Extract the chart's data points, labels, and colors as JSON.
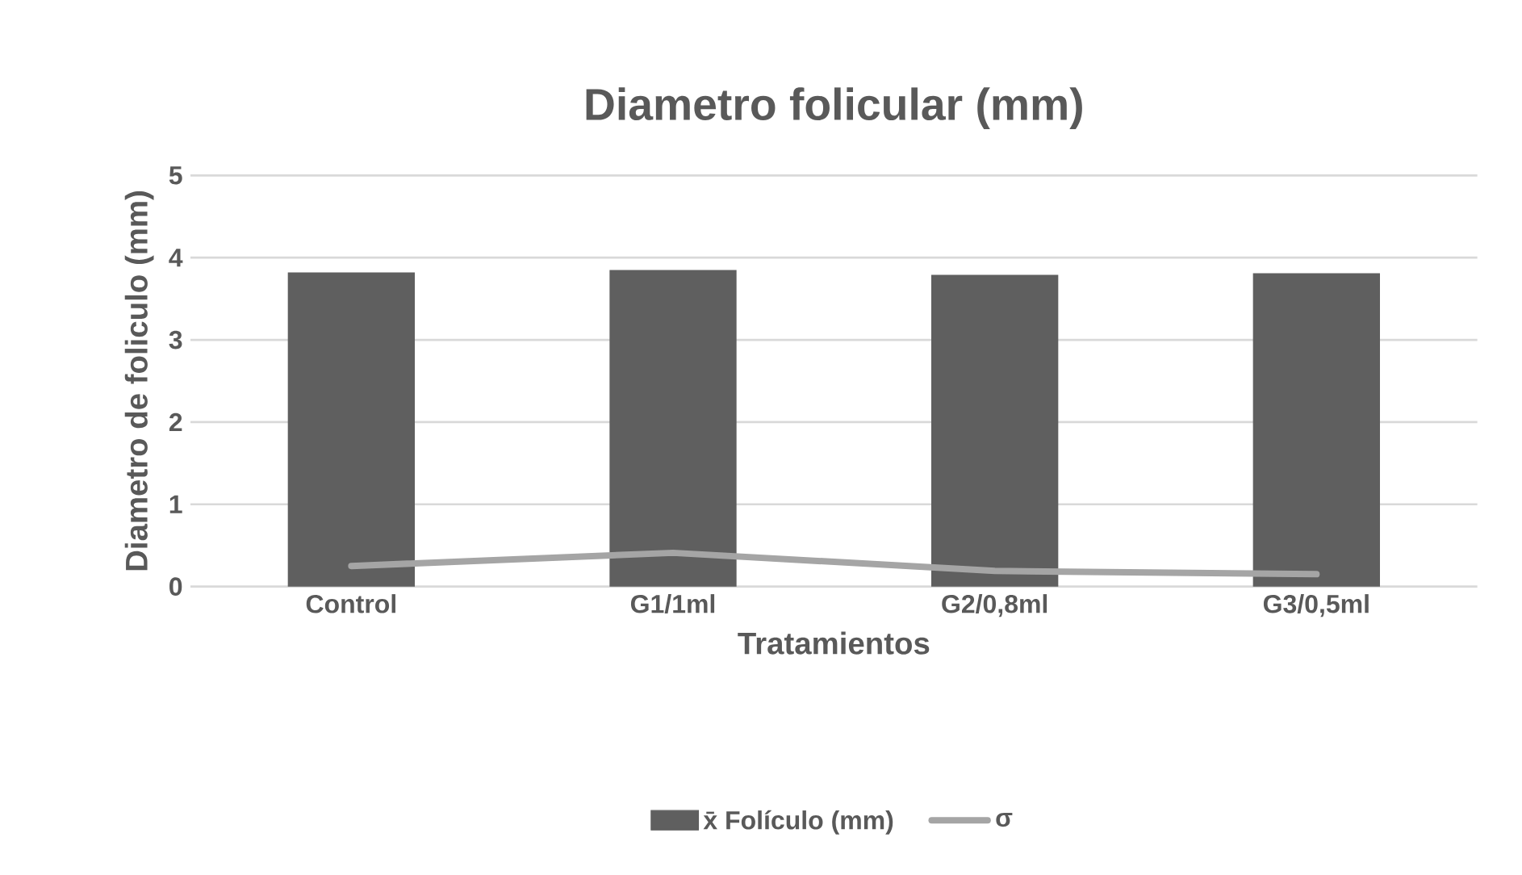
{
  "chart_data": {
    "type": "bar",
    "title": "Diametro folicular (mm)",
    "xlabel": "Tratamientos",
    "ylabel": "Diametro de foliculo (mm)",
    "categories": [
      "Control",
      "G1/1ml",
      "G2/0,8ml",
      "G3/0,5ml"
    ],
    "series": [
      {
        "name": "x̄ Folículo (mm)",
        "color": "#5f5f5f",
        "values": [
          3.82,
          3.85,
          3.79,
          3.81
        ]
      },
      {
        "name": "σ",
        "type": "line",
        "color": "#a5a5a5",
        "values": [
          0.25,
          0.41,
          0.19,
          0.15
        ]
      }
    ],
    "ylim": [
      0,
      5
    ],
    "yticks": [
      0,
      1,
      2,
      3,
      4,
      5
    ],
    "grid": "y",
    "legend": "bottom"
  }
}
